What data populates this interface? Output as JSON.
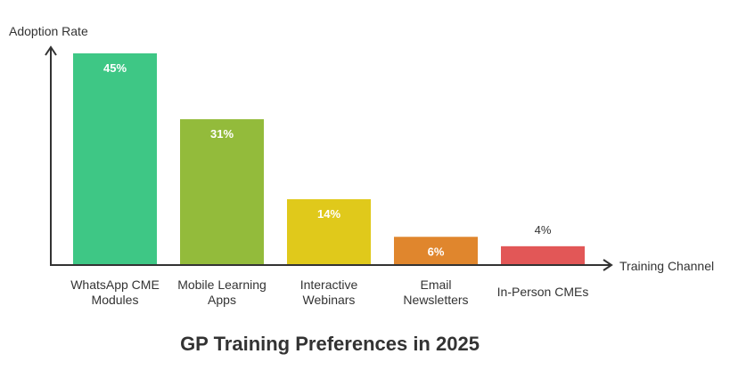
{
  "chart_data": {
    "type": "bar",
    "title": "GP Training Preferences in 2025",
    "xlabel": "Training Channel",
    "ylabel": "Adoption Rate",
    "ylim": [
      0,
      45
    ],
    "grid": false,
    "categories": [
      [
        "WhatsApp CME",
        "Modules"
      ],
      [
        "Mobile Learning",
        "Apps"
      ],
      [
        "Interactive",
        "Webinars"
      ],
      [
        "Email",
        "Newsletters"
      ],
      [
        "In-Person CMEs"
      ]
    ],
    "values": [
      45,
      31,
      14,
      6,
      4
    ],
    "value_labels": [
      "45%",
      "31%",
      "14%",
      "6%",
      "4%"
    ],
    "colors": [
      "#3ec785",
      "#93bb3b",
      "#e0c91b",
      "#e0862d",
      "#e25757"
    ]
  }
}
